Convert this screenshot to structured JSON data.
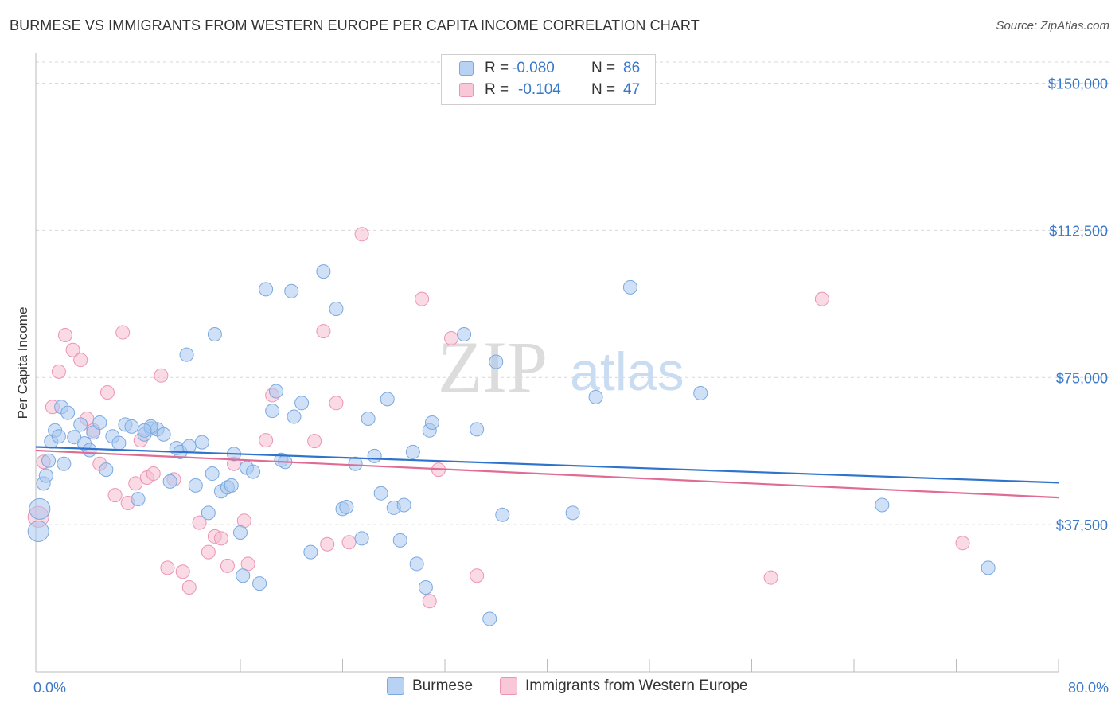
{
  "title": "BURMESE VS IMMIGRANTS FROM WESTERN EUROPE PER CAPITA INCOME CORRELATION CHART",
  "source": "Source: ZipAtlas.com",
  "watermark": {
    "zip": "ZIP",
    "atlas": "atlas"
  },
  "colors": {
    "burmese_fill": "#a9c9f0",
    "burmese_stroke": "#7aa9e0",
    "burmese_line": "#2f74cc",
    "western_fill": "#f6bcd0",
    "western_stroke": "#ec95b2",
    "western_line": "#e06c95",
    "axis_text": "#3a78c9",
    "grid": "#d8d8d8"
  },
  "legend": {
    "rows": [
      {
        "r_label": "R =",
        "r_value": "-0.080",
        "n_label": "N =",
        "n_value": "86"
      },
      {
        "r_label": "R =",
        "r_value": "-0.104",
        "n_label": "N =",
        "n_value": "47"
      }
    ]
  },
  "bottom_legend": {
    "burmese": "Burmese",
    "western": "Immigrants from Western Europe"
  },
  "chart_data": {
    "type": "scatter",
    "title": "BURMESE VS IMMIGRANTS FROM WESTERN EUROPE PER CAPITA INCOME CORRELATION CHART",
    "xlabel": "",
    "ylabel": "Per Capita Income",
    "xlim": [
      0,
      80
    ],
    "ylim": [
      0,
      157000
    ],
    "x_tick_labels": [
      "0.0%",
      "80.0%"
    ],
    "y_ticks": [
      37500,
      75000,
      112500,
      150000
    ],
    "y_tick_labels": [
      "$37,500",
      "$75,000",
      "$112,500",
      "$150,000"
    ],
    "grid": true,
    "legend_position": "top-center",
    "series": [
      {
        "name": "Burmese",
        "r": -0.08,
        "n": 86,
        "trend": {
          "x": [
            0,
            80
          ],
          "y": [
            57300,
            48200
          ]
        },
        "points": [
          [
            0.2,
            35800
          ],
          [
            0.3,
            41500
          ],
          [
            0.6,
            48000
          ],
          [
            0.8,
            50000
          ],
          [
            1.0,
            53800
          ],
          [
            1.2,
            58700
          ],
          [
            1.5,
            61500
          ],
          [
            1.8,
            60000
          ],
          [
            2.0,
            67500
          ],
          [
            2.2,
            53000
          ],
          [
            2.5,
            66000
          ],
          [
            3.0,
            59800
          ],
          [
            3.5,
            63000
          ],
          [
            3.8,
            58200
          ],
          [
            4.2,
            56500
          ],
          [
            4.5,
            61000
          ],
          [
            5.0,
            63500
          ],
          [
            5.5,
            51500
          ],
          [
            6.0,
            60000
          ],
          [
            6.5,
            58300
          ],
          [
            7.0,
            63000
          ],
          [
            7.5,
            62500
          ],
          [
            8.0,
            44000
          ],
          [
            8.5,
            60500
          ],
          [
            9.0,
            62000
          ],
          [
            9.5,
            61800
          ],
          [
            9.0,
            62500
          ],
          [
            10.0,
            60500
          ],
          [
            10.5,
            48500
          ],
          [
            11.0,
            57000
          ],
          [
            11.3,
            56000
          ],
          [
            11.8,
            80800
          ],
          [
            12.0,
            57500
          ],
          [
            12.5,
            47500
          ],
          [
            13.0,
            58500
          ],
          [
            13.5,
            40500
          ],
          [
            13.8,
            50500
          ],
          [
            14.0,
            86000
          ],
          [
            14.5,
            46000
          ],
          [
            15.0,
            47000
          ],
          [
            15.3,
            47500
          ],
          [
            15.5,
            55500
          ],
          [
            16.0,
            35500
          ],
          [
            16.2,
            24500
          ],
          [
            16.5,
            52000
          ],
          [
            17.0,
            51000
          ],
          [
            17.5,
            22500
          ],
          [
            18.0,
            97500
          ],
          [
            18.5,
            66500
          ],
          [
            18.8,
            71500
          ],
          [
            19.2,
            54000
          ],
          [
            19.5,
            53500
          ],
          [
            20.0,
            97000
          ],
          [
            20.2,
            65000
          ],
          [
            20.8,
            68500
          ],
          [
            21.5,
            30500
          ],
          [
            22.5,
            102000
          ],
          [
            23.5,
            92500
          ],
          [
            24.0,
            41500
          ],
          [
            24.3,
            42000
          ],
          [
            25.0,
            53000
          ],
          [
            25.5,
            34000
          ],
          [
            26.0,
            64500
          ],
          [
            26.5,
            55000
          ],
          [
            27.0,
            45500
          ],
          [
            27.5,
            69500
          ],
          [
            28.0,
            41800
          ],
          [
            28.5,
            33500
          ],
          [
            28.8,
            42500
          ],
          [
            29.5,
            56000
          ],
          [
            29.8,
            27500
          ],
          [
            30.5,
            21500
          ],
          [
            30.8,
            61500
          ],
          [
            31.0,
            63500
          ],
          [
            33.5,
            86000
          ],
          [
            34.5,
            61800
          ],
          [
            35.5,
            13500
          ],
          [
            36.0,
            79000
          ],
          [
            36.5,
            40000
          ],
          [
            42.0,
            40500
          ],
          [
            43.8,
            70000
          ],
          [
            46.5,
            98000
          ],
          [
            52.0,
            71000
          ],
          [
            66.2,
            42500
          ],
          [
            74.5,
            26500
          ],
          [
            8.5,
            61500
          ]
        ]
      },
      {
        "name": "Immigrants from Western Europe",
        "r": -0.104,
        "n": 47,
        "trend": {
          "x": [
            0,
            80
          ],
          "y": [
            56400,
            44400
          ]
        },
        "points": [
          [
            0.2,
            39500
          ],
          [
            0.6,
            53500
          ],
          [
            1.3,
            67500
          ],
          [
            1.8,
            76500
          ],
          [
            2.3,
            85800
          ],
          [
            2.9,
            82000
          ],
          [
            3.5,
            79500
          ],
          [
            4.0,
            64500
          ],
          [
            4.5,
            61500
          ],
          [
            5.0,
            53000
          ],
          [
            5.6,
            71200
          ],
          [
            6.2,
            45000
          ],
          [
            6.8,
            86500
          ],
          [
            7.2,
            43000
          ],
          [
            7.8,
            48000
          ],
          [
            8.2,
            59000
          ],
          [
            8.7,
            49500
          ],
          [
            9.2,
            50500
          ],
          [
            9.8,
            75500
          ],
          [
            10.3,
            26500
          ],
          [
            10.8,
            49000
          ],
          [
            11.5,
            25500
          ],
          [
            12.0,
            21500
          ],
          [
            12.8,
            38000
          ],
          [
            13.5,
            30500
          ],
          [
            14.0,
            34500
          ],
          [
            14.5,
            34000
          ],
          [
            15.0,
            27000
          ],
          [
            15.5,
            53000
          ],
          [
            16.3,
            38500
          ],
          [
            16.6,
            27500
          ],
          [
            18.0,
            59000
          ],
          [
            18.5,
            70500
          ],
          [
            21.8,
            58800
          ],
          [
            22.5,
            86800
          ],
          [
            22.8,
            32500
          ],
          [
            23.5,
            68500
          ],
          [
            24.5,
            33000
          ],
          [
            25.5,
            111500
          ],
          [
            30.2,
            95000
          ],
          [
            30.8,
            18000
          ],
          [
            31.5,
            51500
          ],
          [
            32.5,
            85000
          ],
          [
            34.5,
            24500
          ],
          [
            57.5,
            24000
          ],
          [
            61.5,
            95000
          ],
          [
            72.5,
            32800
          ]
        ]
      }
    ]
  }
}
